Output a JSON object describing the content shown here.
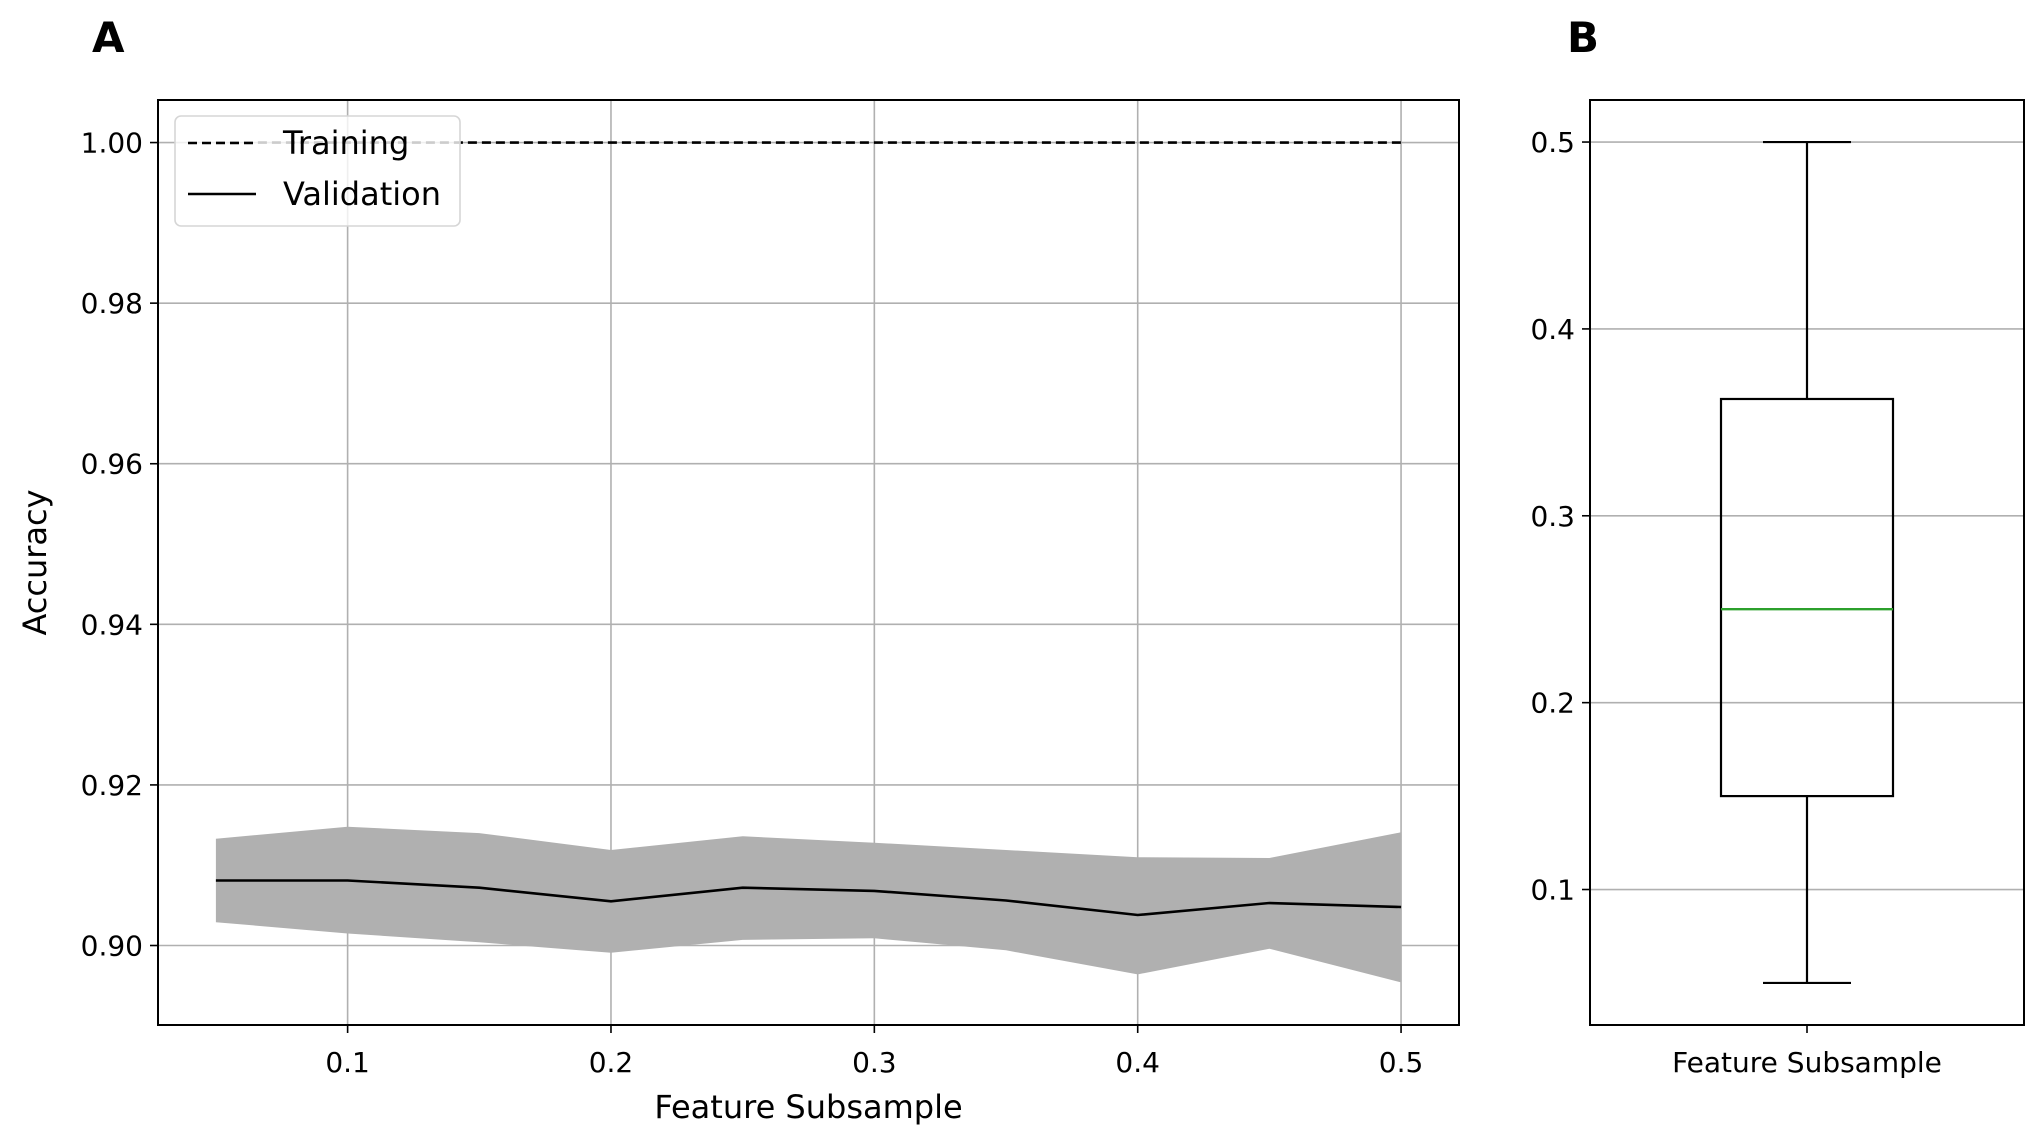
{
  "chart_data": [
    {
      "panel": "A",
      "type": "line",
      "xlabel": "Feature Subsample",
      "ylabel": "Accuracy",
      "xlim": [
        0.028,
        0.522
      ],
      "ylim": [
        0.8901,
        1.0053
      ],
      "xticks": [
        "0.1",
        "0.2",
        "0.3",
        "0.4",
        "0.5"
      ],
      "xtick_values": [
        0.1,
        0.2,
        0.3,
        0.4,
        0.5
      ],
      "yticks": [
        "0.90",
        "0.92",
        "0.94",
        "0.96",
        "0.98",
        "1.00"
      ],
      "ytick_values": [
        0.9,
        0.92,
        0.94,
        0.96,
        0.98,
        1.0
      ],
      "grid": true,
      "legend_position": "upper-left",
      "x": [
        0.05,
        0.1,
        0.15,
        0.2,
        0.25,
        0.3,
        0.35,
        0.4,
        0.45,
        0.5
      ],
      "series": [
        {
          "name": "Training",
          "style": "dashed",
          "color": "#000000",
          "values": [
            1.0,
            1.0,
            1.0,
            1.0,
            1.0,
            1.0,
            1.0,
            1.0,
            1.0,
            1.0
          ]
        },
        {
          "name": "Validation",
          "style": "solid",
          "color": "#000000",
          "values": [
            0.9081,
            0.9081,
            0.9072,
            0.9055,
            0.9072,
            0.9068,
            0.9056,
            0.9038,
            0.9053,
            0.9048
          ],
          "band_upper": [
            0.9133,
            0.9148,
            0.914,
            0.9119,
            0.9136,
            0.9128,
            0.9119,
            0.911,
            0.9109,
            0.9141
          ],
          "band_lower": [
            0.9029,
            0.9015,
            0.9004,
            0.8991,
            0.9007,
            0.9009,
            0.8994,
            0.8964,
            0.8996,
            0.8954
          ],
          "band_color": "#b0b0b0"
        }
      ]
    },
    {
      "panel": "B",
      "type": "box",
      "xlabel": "Feature Subsample",
      "categories": [
        "Feature Subsample"
      ],
      "ylim": [
        0.0275,
        0.5225
      ],
      "yticks": [
        "0.1",
        "0.2",
        "0.3",
        "0.4",
        "0.5"
      ],
      "ytick_values": [
        0.1,
        0.2,
        0.3,
        0.4,
        0.5
      ],
      "grid": true,
      "whisker_low": 0.05,
      "q1": 0.15,
      "median": 0.25,
      "q3": 0.3625,
      "whisker_high": 0.5,
      "median_color": "#2ca02c"
    }
  ]
}
